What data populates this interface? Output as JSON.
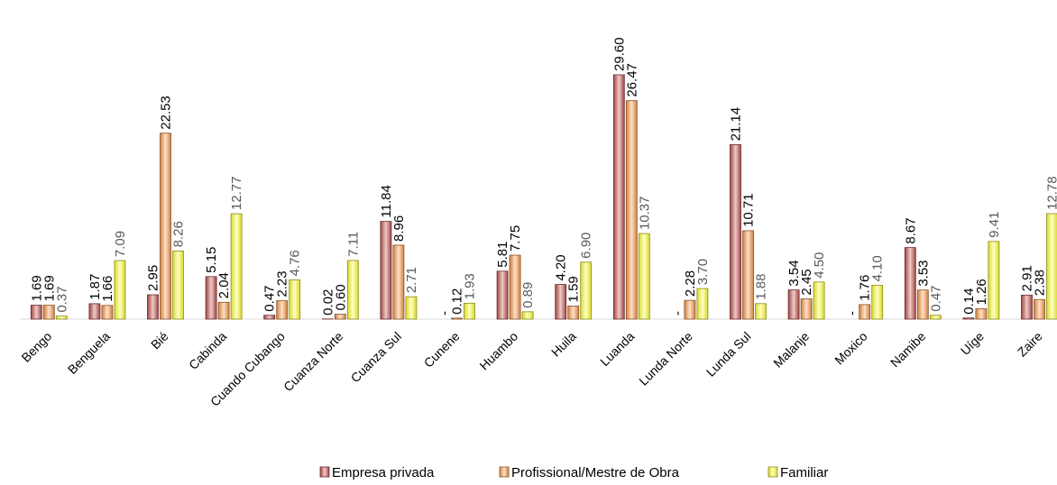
{
  "chart_data": {
    "type": "bar",
    "categories": [
      "Bengo",
      "Benguela",
      "Bié",
      "Cabinda",
      "Cuando Cubango",
      "Cuanza Norte",
      "Cuanza Sul",
      "Cunene",
      "Huambo",
      "Huila",
      "Luanda",
      "Lunda Norte",
      "Lunda Sul",
      "Malanje",
      "Moxico",
      "Namibe",
      "Uíge",
      "Zaire"
    ],
    "series": [
      {
        "name": "Empresa privada",
        "color": "#c0504d",
        "label_color": "#000000",
        "values": [
          1.69,
          1.87,
          2.95,
          5.15,
          0.47,
          0.02,
          11.84,
          0,
          5.81,
          4.2,
          29.6,
          0,
          21.14,
          3.54,
          0,
          8.67,
          0.14,
          2.91
        ],
        "value_labels": [
          "1.69",
          "1.87",
          "2.95",
          "5.15",
          "0.47",
          "0.02",
          "11.84",
          "-",
          "5.81",
          "4.20",
          "29.60",
          "-",
          "21.14",
          "3.54",
          "-",
          "8.67",
          "0.14",
          "2.91"
        ]
      },
      {
        "name": "Profissional/Mestre de Obra",
        "color": "#f79646",
        "label_color": "#000000",
        "values": [
          1.69,
          1.66,
          22.53,
          2.04,
          2.23,
          0.6,
          8.96,
          0.12,
          7.75,
          1.59,
          26.47,
          2.28,
          10.71,
          2.45,
          1.76,
          3.53,
          1.26,
          2.38
        ],
        "value_labels": [
          "1.69",
          "1.66",
          "22.53",
          "2.04",
          "2.23",
          "0.60",
          "8.96",
          "0.12",
          "7.75",
          "1.59",
          "26.47",
          "2.28",
          "10.71",
          "2.45",
          "1.76",
          "3.53",
          "1.26",
          "2.38"
        ]
      },
      {
        "name": "Familiar",
        "color": "#ffff33",
        "label_color": "#595959",
        "values": [
          0.37,
          7.09,
          8.26,
          12.77,
          4.76,
          7.11,
          2.71,
          1.93,
          0.89,
          6.9,
          10.37,
          3.7,
          1.88,
          4.5,
          4.1,
          0.47,
          9.41,
          12.78
        ],
        "value_labels": [
          "0.37",
          "7.09",
          "8.26",
          "12.77",
          "4.76",
          "7.11",
          "2.71",
          "1.93",
          "0.89",
          "6.90",
          "10.37",
          "3.70",
          "1.88",
          "4.50",
          "4.10",
          "0.47",
          "9.41",
          "12.78"
        ]
      }
    ],
    "ylim": [
      0,
      32
    ],
    "legend": "bottom"
  }
}
